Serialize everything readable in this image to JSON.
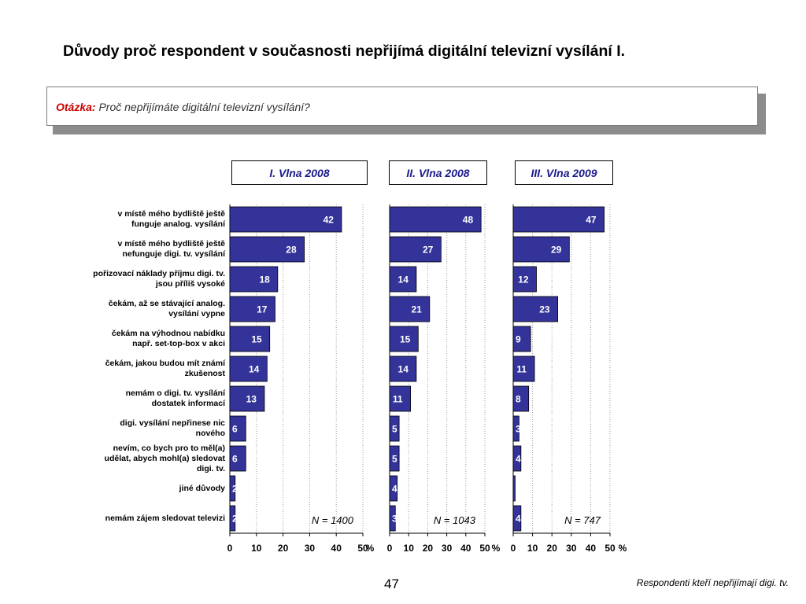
{
  "page": {
    "title": "Důvody proč respondent v současnosti nepřijímá digitální televizní vysílání I.",
    "question_label": "Otázka:",
    "question_text": "Proč nepřijímáte digitální televizní vysílání?",
    "page_number": "47",
    "footnote": "Respondenti kteří nepřijímají digi. tv."
  },
  "colors": {
    "bar": "#333399",
    "bar_stroke": "#000000",
    "grid": "#999999",
    "qlabel": "#cc0000"
  },
  "chart_data": {
    "type": "bar",
    "orientation": "horizontal",
    "categories": [
      "v místě mého bydliště ještě funguje analog. vysílání",
      "v místě mého bydliště ještě nefunguje digi. tv. vysílání",
      "pořizovací náklady příjmu digi. tv. jsou příliš vysoké",
      "čekám, až se stávající analog. vysílání vypne",
      "čekám na výhodnou nabídku např. set-top-box v akci",
      "čekám, jakou budou mít známí zkušenost",
      "nemám o digi. tv. vysílání dostatek informací",
      "digi. vysílání nepřinese nic nového",
      "nevím, co bych pro to měl(a) udělat, abych mohl(a) sledovat digi. tv.",
      "jiné důvody",
      "nemám zájem sledovat televizi"
    ],
    "xlim": [
      0,
      50
    ],
    "x_ticks": [
      "0",
      "10",
      "20",
      "30",
      "40",
      "50"
    ],
    "unit": "%",
    "grid": true,
    "series": [
      {
        "name": "I. Vlna 2008",
        "n_label": "N = 1400",
        "values": [
          42,
          28,
          18,
          17,
          15,
          14,
          13,
          6,
          6,
          2,
          2
        ]
      },
      {
        "name": "II. Vlna 2008",
        "n_label": "N = 1043",
        "values": [
          48,
          27,
          14,
          21,
          15,
          14,
          11,
          5,
          5,
          4,
          3
        ]
      },
      {
        "name": "III. Vlna 2009",
        "n_label": "N = 747",
        "values": [
          47,
          29,
          12,
          23,
          9,
          11,
          8,
          3,
          4,
          1,
          4
        ]
      }
    ]
  }
}
